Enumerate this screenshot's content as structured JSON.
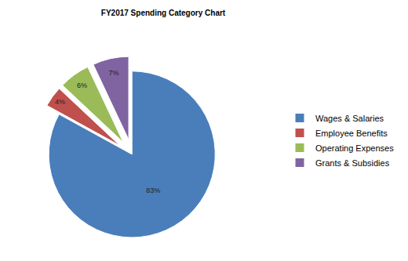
{
  "chart_data": {
    "type": "pie",
    "title": "FY2017 Spending Category Chart",
    "categories": [
      "Wages & Salaries",
      "Employee Benefits",
      "Operating Expenses",
      "Grants & Subsidies"
    ],
    "values": [
      83,
      4,
      6,
      7
    ],
    "value_labels": [
      "83%",
      "4%",
      "6%",
      "7%"
    ],
    "colors": [
      "#4a7ebb",
      "#c0504d",
      "#9bbb59",
      "#8064a2"
    ],
    "data_labels": true,
    "legend": "right"
  }
}
